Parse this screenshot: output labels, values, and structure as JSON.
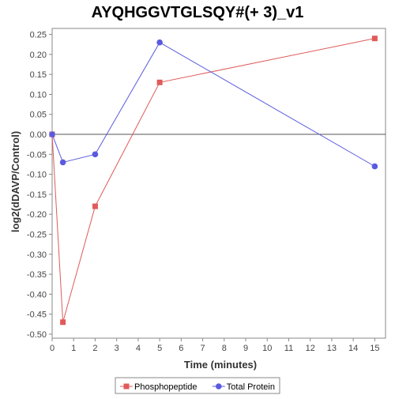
{
  "chart_data": {
    "type": "line",
    "title": "AYQHGGVTGLSQY#(+ 3)_v1",
    "xlabel": "Time (minutes)",
    "ylabel": "log2(dDAVP/Control)",
    "xlim": [
      0,
      15.5
    ],
    "ylim": [
      -0.51,
      0.265
    ],
    "x_ticks": [
      0,
      1,
      2,
      3,
      4,
      5,
      6,
      7,
      8,
      9,
      10,
      11,
      12,
      13,
      14,
      15
    ],
    "y_ticks": [
      -0.5,
      -0.45,
      -0.4,
      -0.35,
      -0.3,
      -0.25,
      -0.2,
      -0.15,
      -0.1,
      -0.05,
      0.0,
      0.05,
      0.1,
      0.15,
      0.2,
      0.25
    ],
    "y_tick_labels": [
      "-0.50",
      "-0.45",
      "-0.40",
      "-0.35",
      "-0.30",
      "-0.25",
      "-0.20",
      "-0.15",
      "-0.10",
      "-0.05",
      "0.00",
      "0.05",
      "0.10",
      "0.15",
      "0.20",
      "0.25"
    ],
    "grid": false,
    "zero_line": true,
    "legend_position": "bottom",
    "series": [
      {
        "name": "Phosphopeptide",
        "color": "#e05a5a",
        "marker": "square",
        "x": [
          0,
          0.5,
          2,
          5,
          15
        ],
        "y": [
          0.0,
          -0.47,
          -0.18,
          0.13,
          0.24
        ]
      },
      {
        "name": "Total Protein",
        "color": "#5a5ae0",
        "marker": "circle",
        "x": [
          0,
          0.5,
          2,
          5,
          15
        ],
        "y": [
          0.0,
          -0.07,
          -0.05,
          0.23,
          -0.08
        ]
      }
    ]
  }
}
